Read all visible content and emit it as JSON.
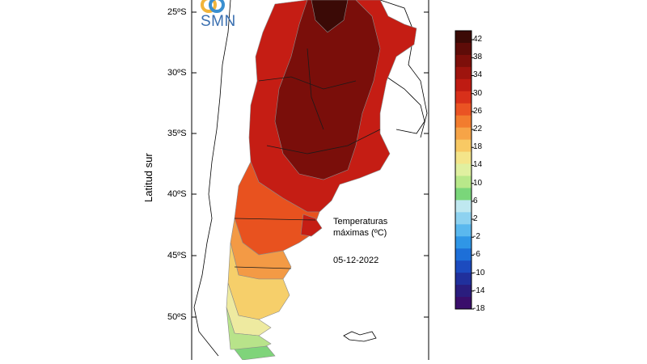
{
  "logo": {
    "text": "SMN"
  },
  "map": {
    "ylabel": "Latitud sur",
    "latitude_labels": [
      "25ºS",
      "30ºS",
      "35ºS",
      "40ºS",
      "45ºS",
      "50ºS"
    ],
    "annotation_title_line1": "Temperaturas",
    "annotation_title_line2": "máximas (ºC)",
    "annotation_date": "05-12-2022"
  },
  "colorbar": {
    "tick_labels": [
      "42",
      "38",
      "34",
      "30",
      "26",
      "22",
      "18",
      "14",
      "10",
      "6",
      "2",
      "-2",
      "-6",
      "-10",
      "-14",
      "-18"
    ],
    "colors": [
      "#3b0a06",
      "#5e0c08",
      "#7d0f0a",
      "#9e140e",
      "#be1b12",
      "#d8301a",
      "#ea5323",
      "#f27c2e",
      "#f6a447",
      "#f8c964",
      "#f4e58a",
      "#e0f0a0",
      "#b8e88a",
      "#7ad67a",
      "#bfe8f0",
      "#8ed2f0",
      "#5ab8ee",
      "#2f96e6",
      "#1d6fd8",
      "#1c4bbf",
      "#20309c",
      "#2a1d7e",
      "#3a0e6b"
    ],
    "min": -18,
    "max": 44
  }
}
